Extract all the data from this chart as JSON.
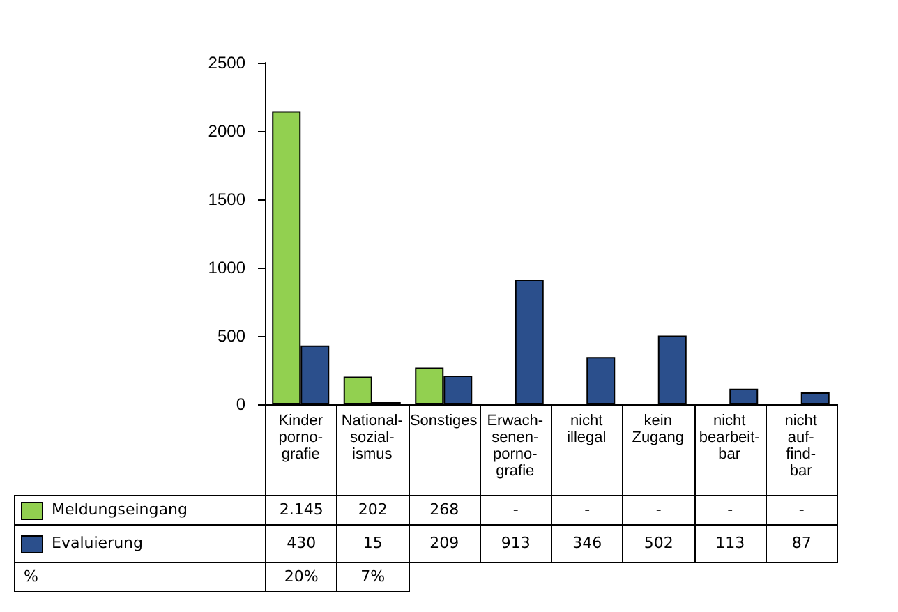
{
  "chart_data": {
    "type": "bar",
    "categories": [
      "Kinder\nporno-\ngrafie",
      "National-\nsozial-\nismus",
      "Sonstiges",
      "Erwach-\nsenen-\nporno-\ngrafie",
      "nicht\nillegal",
      "kein\nZugang",
      "nicht\nbearbeit-\nbar",
      "nicht\nauf-\nfind-\nbar"
    ],
    "series": [
      {
        "name": "Meldungseingang",
        "color": "#92d050",
        "values": [
          2145,
          202,
          268,
          null,
          null,
          null,
          null,
          null
        ],
        "value_labels": [
          "2.145",
          "202",
          "268",
          "-",
          "-",
          "-",
          "-",
          "-"
        ]
      },
      {
        "name": "Evaluierung",
        "color": "#2b4f8c",
        "values": [
          430,
          15,
          209,
          913,
          346,
          502,
          113,
          87
        ],
        "value_labels": [
          "430",
          "15",
          "209",
          "913",
          "346",
          "502",
          "113",
          "87"
        ]
      }
    ],
    "annotations": [
      "%",
      "20%",
      "7%"
    ],
    "ylim": [
      0,
      2500
    ],
    "yticks": [
      0,
      500,
      1000,
      1500,
      2000,
      2500
    ],
    "grid": false,
    "legend": "bottom left"
  }
}
